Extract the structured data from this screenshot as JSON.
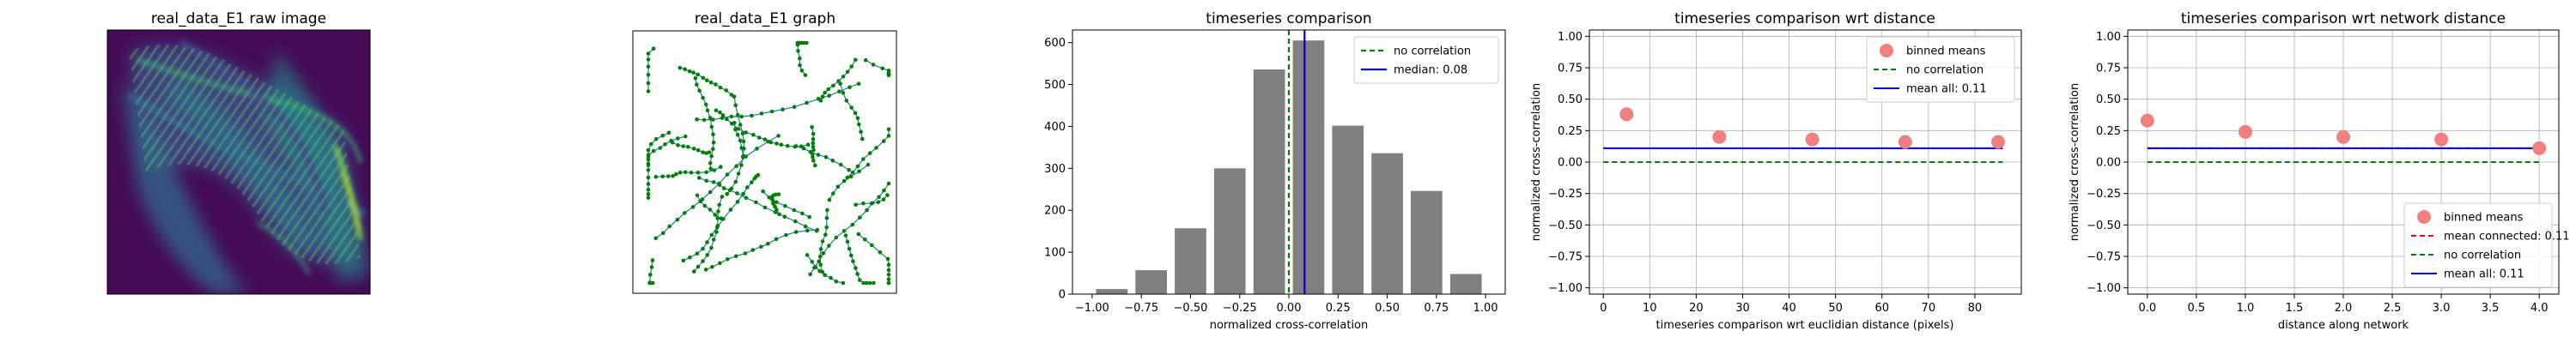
{
  "chart_data": [
    {
      "type": "image",
      "title": "real_data_E1 raw image",
      "colormap": "viridis",
      "axes_visible": false
    },
    {
      "type": "graph",
      "title": "real_data_E1 graph",
      "node_color": "#008000",
      "edge_color": "#1f77b4",
      "axes_visible": false
    },
    {
      "type": "bar",
      "title": "timeseries comparison",
      "xlabel": "normalized cross-correlation",
      "ylabel": "",
      "xlim": [
        -1.1,
        1.1
      ],
      "ylim": [
        0,
        630
      ],
      "xticks": [
        -1.0,
        -0.75,
        -0.5,
        -0.25,
        0.0,
        0.25,
        0.5,
        0.75,
        1.0
      ],
      "xtick_labels": [
        "−1.00",
        "−0.75",
        "−0.50",
        "−0.25",
        "0.00",
        "0.25",
        "0.50",
        "0.75",
        "1.00"
      ],
      "yticks": [
        0,
        100,
        200,
        300,
        400,
        500,
        600
      ],
      "bin_centers": [
        -0.9,
        -0.7,
        -0.5,
        -0.3,
        -0.1,
        0.1,
        0.3,
        0.5,
        0.7,
        0.9
      ],
      "bin_width": 0.16,
      "values": [
        12,
        57,
        157,
        300,
        536,
        605,
        402,
        336,
        246,
        48
      ],
      "bar_color": "#808080",
      "grid": false,
      "legend_position": "top-right",
      "lines": [
        {
          "name": "no correlation",
          "x": 0.0,
          "color": "#008000",
          "style": "dashed"
        },
        {
          "name": "median: 0.08",
          "x": 0.08,
          "color": "#0000cd",
          "style": "solid"
        }
      ]
    },
    {
      "type": "scatter",
      "title": "timeseries comparison wrt distance",
      "xlabel": "timeseries comparison wrt euclidian distance (pixels)",
      "ylabel": "normalized cross-correlation",
      "xlim": [
        -3,
        90
      ],
      "ylim": [
        -1.05,
        1.05
      ],
      "xticks": [
        0,
        10,
        20,
        30,
        40,
        50,
        60,
        70,
        80
      ],
      "xtick_labels": [
        "0",
        "10",
        "20",
        "30",
        "40",
        "50",
        "60",
        "70",
        "80"
      ],
      "yticks": [
        -1.0,
        -0.75,
        -0.5,
        -0.25,
        0.0,
        0.25,
        0.5,
        0.75,
        1.0
      ],
      "ytick_labels": [
        "−1.00",
        "−0.75",
        "−0.50",
        "−0.25",
        "0.00",
        "0.25",
        "0.50",
        "0.75",
        "1.00"
      ],
      "grid": true,
      "legend_position": "top-right",
      "points": {
        "name": "binned means",
        "color": "#f08080",
        "x": [
          5,
          25,
          45,
          65,
          85
        ],
        "y": [
          0.38,
          0.2,
          0.18,
          0.16,
          0.16
        ]
      },
      "hlines": [
        {
          "name": "no correlation",
          "y": 0.0,
          "x_from": 0,
          "x_to": 86,
          "color": "#008000",
          "style": "dashed"
        },
        {
          "name": "mean all: 0.11",
          "y": 0.11,
          "x_from": 0,
          "x_to": 86,
          "color": "#0000cd",
          "style": "solid"
        }
      ]
    },
    {
      "type": "scatter",
      "title": "timeseries comparison wrt network distance",
      "xlabel": "distance along network",
      "ylabel": "normalized cross-correlation",
      "xlim": [
        -0.2,
        4.2
      ],
      "ylim": [
        -1.05,
        1.05
      ],
      "xticks": [
        0.0,
        0.5,
        1.0,
        1.5,
        2.0,
        2.5,
        3.0,
        3.5,
        4.0
      ],
      "xtick_labels": [
        "0.0",
        "0.5",
        "1.0",
        "1.5",
        "2.0",
        "2.5",
        "3.0",
        "3.5",
        "4.0"
      ],
      "yticks": [
        -1.0,
        -0.75,
        -0.5,
        -0.25,
        0.0,
        0.25,
        0.5,
        0.75,
        1.0
      ],
      "ytick_labels": [
        "−1.00",
        "−0.75",
        "−0.50",
        "−0.25",
        "0.00",
        "0.25",
        "0.50",
        "0.75",
        "1.00"
      ],
      "grid": true,
      "legend_position": "bottom-right",
      "points": {
        "name": "binned means",
        "color": "#f08080",
        "x": [
          0,
          1,
          2,
          3,
          4
        ],
        "y": [
          0.33,
          0.24,
          0.2,
          0.18,
          0.11
        ]
      },
      "hlines": [
        {
          "name": "mean connected: 0.11",
          "y": 0.11,
          "x_from": 0,
          "x_to": 4,
          "color": "#ff0000",
          "style": "dashed"
        },
        {
          "name": "no correlation",
          "y": 0.0,
          "x_from": 0,
          "x_to": 4,
          "color": "#008000",
          "style": "dashed"
        },
        {
          "name": "mean all: 0.11",
          "y": 0.11,
          "x_from": 0,
          "x_to": 4,
          "color": "#0000cd",
          "style": "solid"
        }
      ]
    }
  ]
}
